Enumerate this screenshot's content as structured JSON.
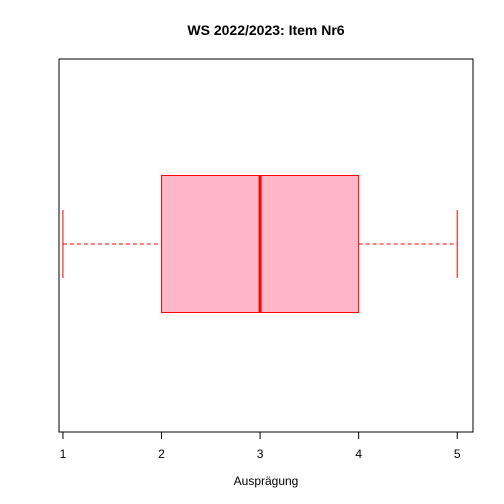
{
  "chart_data": {
    "type": "boxplot",
    "title": "WS 2022/2023: Item Nr6",
    "xlabel": "Ausprägung",
    "ylabel": "",
    "orientation": "horizontal",
    "xlim": [
      0.96,
      5.16
    ],
    "ticks": [
      1,
      2,
      3,
      4,
      5
    ],
    "tick_labels": [
      "1",
      "2",
      "3",
      "4",
      "5"
    ],
    "box": {
      "min": 1,
      "q1": 2,
      "median": 3,
      "q3": 4,
      "max": 5
    },
    "colors": {
      "box_fill": "#FFB6C8",
      "box_stroke": "#FF0000"
    }
  }
}
